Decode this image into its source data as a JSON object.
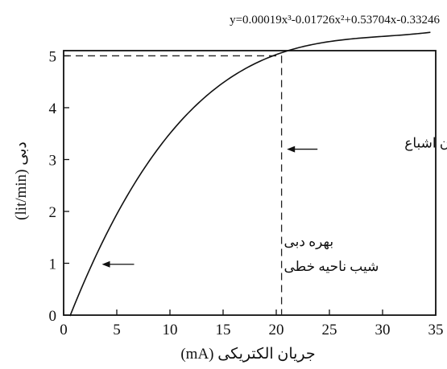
{
  "chart_data": {
    "type": "line",
    "equation": "y=0.00019x³-0.01726x²+0.53704x-0.33246",
    "xlabel": "جریان الکتریکی (mA)",
    "ylabel": "دبی (lit/min)",
    "xlim": [
      0,
      35
    ],
    "ylim": [
      0,
      5.1
    ],
    "x_ticks": [
      "0",
      "5",
      "10",
      "15",
      "20",
      "25",
      "30",
      "35"
    ],
    "y_ticks": [
      "0",
      "1",
      "2",
      "3",
      "4",
      "5"
    ],
    "series": [
      {
        "coefficients": [
          0.00019,
          -0.01726,
          0.53704,
          -0.33246
        ],
        "x_range": [
          0.6,
          34.5
        ]
      }
    ],
    "saturation": {
      "x": 20.5,
      "y": 5.0
    },
    "annotations": [
      {
        "id": "saturation",
        "lines": [
          "جریان اشباع"
        ],
        "x": 21,
        "y": 3.2
      },
      {
        "id": "linear",
        "lines": [
          "بهره دبی",
          "شیب ناحیه خطی"
        ],
        "x": 3.6,
        "y": 0.98
      }
    ],
    "grid": false,
    "legend": "none"
  }
}
